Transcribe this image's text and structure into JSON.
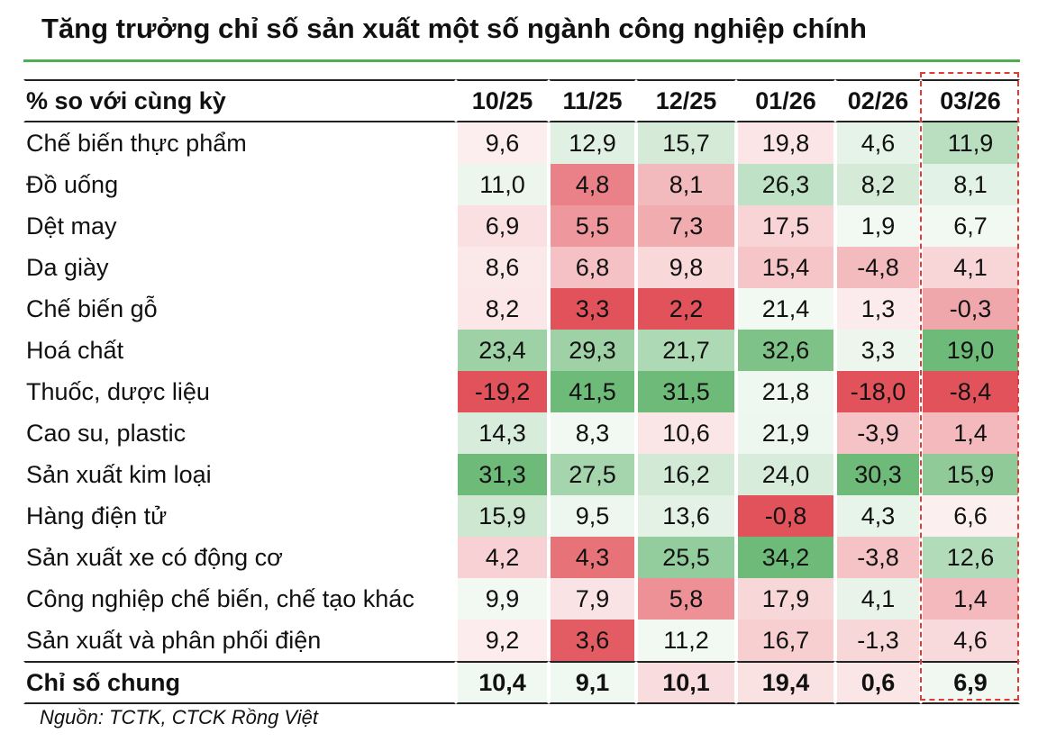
{
  "title": "Tăng trưởng chỉ số sản xuất một số ngành công nghiệp chính",
  "source": "Nguồn: TCTK, CTCK Rồng Việt",
  "colors": {
    "positive": "#62b56f",
    "negative": "#e0454e",
    "rule": "#4caf50",
    "highlight": "#e53935"
  },
  "chart_data": {
    "type": "heatmap",
    "row_header": "% so với cùng kỳ",
    "columns": [
      "10/25",
      "11/25",
      "12/25",
      "01/26",
      "02/26",
      "03/26"
    ],
    "highlighted_column": "03/26",
    "rows": [
      {
        "name": "Chế biến thực phẩm",
        "values": [
          "9,6",
          "12,9",
          "15,7",
          "19,8",
          "4,6",
          "11,9"
        ]
      },
      {
        "name": "Đồ uống",
        "values": [
          "11,0",
          "4,8",
          "8,1",
          "26,3",
          "8,2",
          "8,1"
        ]
      },
      {
        "name": "Dệt may",
        "values": [
          "6,9",
          "5,5",
          "7,3",
          "17,5",
          "1,9",
          "6,7"
        ]
      },
      {
        "name": "Da giày",
        "values": [
          "8,6",
          "6,8",
          "9,8",
          "15,4",
          "-4,8",
          "4,1"
        ]
      },
      {
        "name": "Chế biến gỗ",
        "values": [
          "8,2",
          "3,3",
          "2,2",
          "21,4",
          "1,3",
          "-0,3"
        ]
      },
      {
        "name": "Hoá chất",
        "values": [
          "23,4",
          "29,3",
          "21,7",
          "32,6",
          "3,3",
          "19,0"
        ]
      },
      {
        "name": "Thuốc, dược liệu",
        "values": [
          "-19,2",
          "41,5",
          "31,5",
          "21,8",
          "-18,0",
          "-8,4"
        ]
      },
      {
        "name": "Cao su, plastic",
        "values": [
          "14,3",
          "8,3",
          "10,6",
          "21,9",
          "-3,9",
          "1,4"
        ]
      },
      {
        "name": "Sản xuất kim loại",
        "values": [
          "31,3",
          "27,5",
          "16,2",
          "24,0",
          "30,3",
          "15,9"
        ]
      },
      {
        "name": "Hàng điện tử",
        "values": [
          "15,9",
          "9,5",
          "13,6",
          "-0,8",
          "4,3",
          "6,6"
        ]
      },
      {
        "name": "Sản xuất xe có động cơ",
        "values": [
          "4,2",
          "4,3",
          "25,5",
          "34,2",
          "-3,8",
          "12,6"
        ]
      },
      {
        "name": "Công nghiệp chế biến, chế tạo khác",
        "values": [
          "9,9",
          "7,9",
          "5,8",
          "17,9",
          "4,1",
          "1,4"
        ]
      },
      {
        "name": "Sản xuất và phân phối điện",
        "values": [
          "9,2",
          "3,6",
          "11,2",
          "16,7",
          "-1,3",
          "4,6"
        ]
      }
    ],
    "total": {
      "name": "Chỉ số chung",
      "values": [
        "10,4",
        "9,1",
        "10,1",
        "19,4",
        "0,6",
        "6,9"
      ]
    }
  }
}
